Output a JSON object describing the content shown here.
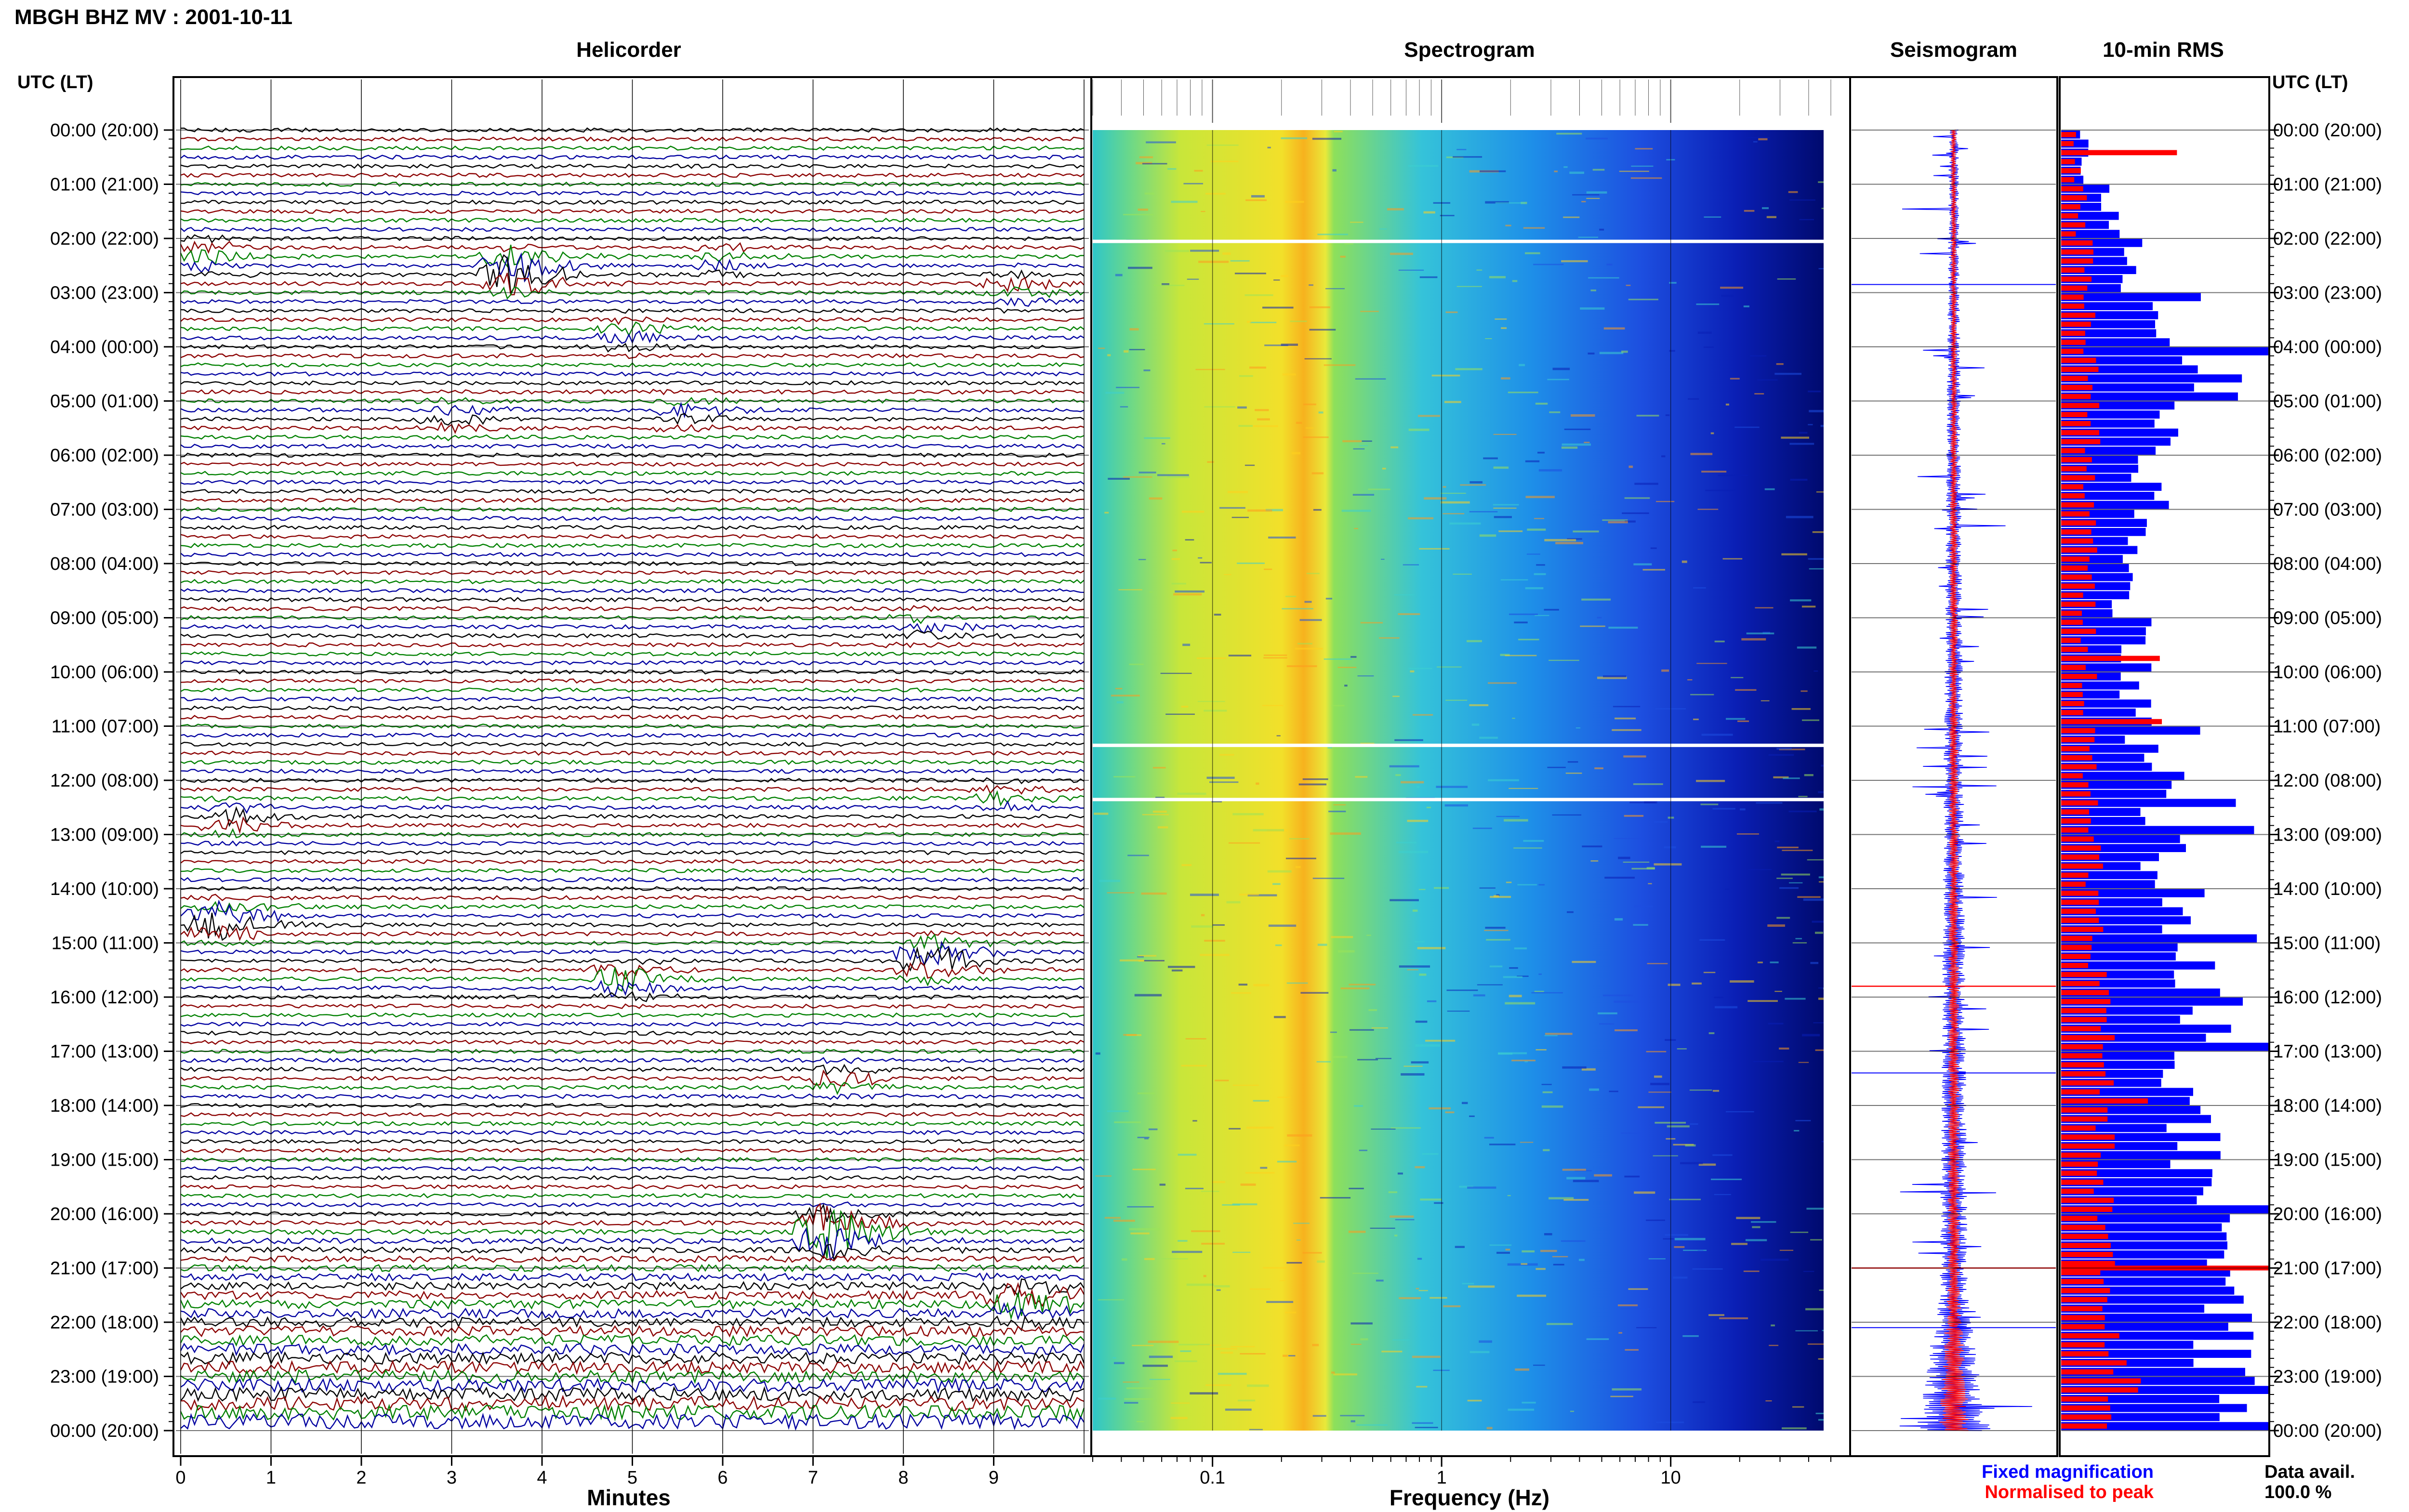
{
  "page_title": "MBGH BHZ MV : 2001-10-11",
  "panels": {
    "helicorder": "Helicorder",
    "spectrogram": "Spectrogram",
    "seismogram": "Seismogram",
    "rms": "10-min RMS"
  },
  "axis_labels": {
    "time_left": "UTC (LT)",
    "time_right": "UTC (LT)",
    "helicorder_x": "Minutes",
    "spectrogram_x": "Frequency (Hz)"
  },
  "legend": {
    "fixed": "Fixed magnification",
    "normalised": "Normalised to peak"
  },
  "data_availability": {
    "label": "Data avail.",
    "value": "100.0 %"
  },
  "colors": {
    "trace_cycle": [
      "#000000",
      "#8b0000",
      "#008000",
      "#0000a0"
    ],
    "fixed": "#0000ff",
    "normalised": "#ff0000",
    "frame": "#000000"
  },
  "chart_data": [
    {
      "type": "line",
      "name": "helicorder",
      "title": "Helicorder",
      "xlabel": "Minutes",
      "xticks": [
        "0",
        "1",
        "2",
        "3",
        "4",
        "5",
        "6",
        "7",
        "8",
        "9"
      ],
      "xlim": [
        0,
        10
      ],
      "rows_per_hour": 6,
      "row_minutes": 10,
      "time_labels": [
        "00:00 (20:00)",
        "01:00 (21:00)",
        "02:00 (22:00)",
        "03:00 (23:00)",
        "04:00 (00:00)",
        "05:00 (01:00)",
        "06:00 (02:00)",
        "07:00 (03:00)",
        "08:00 (04:00)",
        "09:00 (05:00)",
        "10:00 (06:00)",
        "11:00 (07:00)",
        "12:00 (08:00)",
        "13:00 (09:00)",
        "14:00 (10:00)",
        "15:00 (11:00)",
        "16:00 (12:00)",
        "17:00 (13:00)",
        "18:00 (14:00)",
        "19:00 (15:00)",
        "20:00 (16:00)",
        "21:00 (17:00)",
        "22:00 (18:00)",
        "23:00 (19:00)",
        "00:00 (20:00)"
      ],
      "events": [
        {
          "hour": 2.3,
          "minute": 0.3,
          "amp": 0.9
        },
        {
          "hour": 2.6,
          "minute": 3.7,
          "amp": 2.6
        },
        {
          "hour": 2.4,
          "minute": 6.0,
          "amp": 0.8
        },
        {
          "hour": 2.9,
          "minute": 9.2,
          "amp": 0.9
        },
        {
          "hour": 3.8,
          "minute": 5.0,
          "amp": 1.0
        },
        {
          "hour": 5.3,
          "minute": 3.0,
          "amp": 0.8
        },
        {
          "hour": 5.2,
          "minute": 5.6,
          "amp": 0.9
        },
        {
          "hour": 9.2,
          "minute": 8.2,
          "amp": 0.7
        },
        {
          "hour": 12.7,
          "minute": 0.6,
          "amp": 1.0
        },
        {
          "hour": 12.3,
          "minute": 9.1,
          "amp": 0.8
        },
        {
          "hour": 14.6,
          "minute": 0.4,
          "amp": 2.0
        },
        {
          "hour": 15.3,
          "minute": 8.3,
          "amp": 2.0
        },
        {
          "hour": 15.7,
          "minute": 4.9,
          "amp": 1.4
        },
        {
          "hour": 17.5,
          "minute": 7.3,
          "amp": 0.9
        },
        {
          "hour": 20.3,
          "minute": 7.2,
          "amp": 3.0
        },
        {
          "hour": 21.6,
          "minute": 9.3,
          "amp": 2.0
        }
      ]
    },
    {
      "type": "heatmap",
      "name": "spectrogram",
      "title": "Spectrogram",
      "xlabel": "Frequency (Hz)",
      "xscale": "log",
      "xticks": [
        0.1,
        1,
        10
      ],
      "xlim": [
        0.03,
        50
      ],
      "peak_frequency_hz": 0.25,
      "colormap": "jet",
      "data_gaps_hour": [
        2.05,
        11.35,
        12.35
      ]
    },
    {
      "type": "line",
      "name": "seismogram",
      "title": "Seismogram",
      "series": [
        {
          "name": "Fixed magnification",
          "color": "#0000ff"
        },
        {
          "name": "Normalised to peak",
          "color": "#ff0000"
        }
      ]
    },
    {
      "type": "bar",
      "name": "10-min RMS",
      "title": "10-min RMS",
      "orientation": "horizontal",
      "bins_per_hour": 6,
      "hour_profile_fixed": [
        0.12,
        0.25,
        0.35,
        0.55,
        0.75,
        0.6,
        0.45,
        0.35,
        0.3,
        0.38,
        0.35,
        0.4,
        0.45,
        0.5,
        0.58,
        0.65,
        0.72,
        0.62,
        0.65,
        0.68,
        0.72,
        0.78,
        0.85,
        0.95
      ],
      "hour_profile_normalised": [
        0.08,
        0.1,
        0.12,
        0.14,
        0.15,
        0.15,
        0.15,
        0.14,
        0.13,
        0.13,
        0.14,
        0.14,
        0.15,
        0.16,
        0.16,
        0.18,
        0.22,
        0.2,
        0.2,
        0.2,
        0.2,
        0.22,
        0.25,
        0.3
      ],
      "xlim": [
        0,
        1
      ],
      "series": [
        {
          "name": "Fixed magnification",
          "color": "#0000ff"
        },
        {
          "name": "Normalised to peak",
          "color": "#ff0000"
        }
      ]
    }
  ]
}
